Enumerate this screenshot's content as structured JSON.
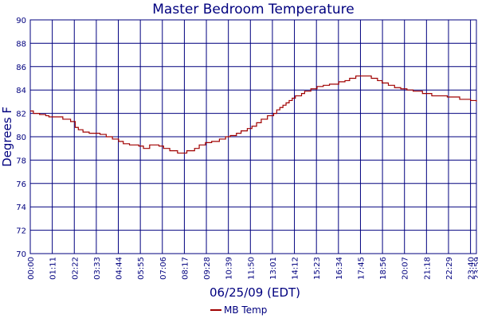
{
  "chart_data": {
    "type": "line",
    "title": "Master Bedroom Temperature",
    "xlabel": "06/25/09 (EDT)",
    "ylabel": "Degrees F",
    "ylim": [
      70,
      90
    ],
    "yticks": [
      70,
      72,
      74,
      76,
      78,
      80,
      82,
      84,
      86,
      88,
      90
    ],
    "xticks": [
      "00:00",
      "01:11",
      "02:22",
      "03:33",
      "04:44",
      "05:55",
      "07:06",
      "08:17",
      "09:28",
      "10:39",
      "11:50",
      "13:01",
      "14:12",
      "15:23",
      "16:34",
      "17:45",
      "18:56",
      "20:07",
      "21:18",
      "22:29",
      "23:40",
      "23:59"
    ],
    "xlim": [
      "00:00",
      "23:59"
    ],
    "grid": true,
    "legend_position": "bottom-center",
    "colors": {
      "series": "#a00000",
      "grid": "#00007f",
      "text": "#00007f"
    },
    "series": [
      {
        "name": "MB Temp",
        "step": true,
        "points": [
          [
            "00:00",
            82.2
          ],
          [
            "00:10",
            82.0
          ],
          [
            "00:30",
            81.9
          ],
          [
            "00:50",
            81.8
          ],
          [
            "01:00",
            81.7
          ],
          [
            "01:45",
            81.5
          ],
          [
            "02:10",
            81.3
          ],
          [
            "02:25",
            80.8
          ],
          [
            "02:35",
            80.6
          ],
          [
            "02:50",
            80.4
          ],
          [
            "03:10",
            80.3
          ],
          [
            "03:45",
            80.2
          ],
          [
            "04:05",
            80.0
          ],
          [
            "04:25",
            79.8
          ],
          [
            "04:45",
            79.6
          ],
          [
            "05:00",
            79.4
          ],
          [
            "05:20",
            79.3
          ],
          [
            "05:50",
            79.2
          ],
          [
            "06:05",
            79.0
          ],
          [
            "06:25",
            79.3
          ],
          [
            "06:55",
            79.2
          ],
          [
            "07:10",
            79.0
          ],
          [
            "07:30",
            78.8
          ],
          [
            "07:55",
            78.6
          ],
          [
            "08:25",
            78.8
          ],
          [
            "08:50",
            79.0
          ],
          [
            "09:05",
            79.3
          ],
          [
            "09:25",
            79.5
          ],
          [
            "09:45",
            79.6
          ],
          [
            "10:10",
            79.8
          ],
          [
            "10:30",
            80.0
          ],
          [
            "10:45",
            80.1
          ],
          [
            "11:05",
            80.3
          ],
          [
            "11:20",
            80.5
          ],
          [
            "11:40",
            80.7
          ],
          [
            "11:55",
            80.9
          ],
          [
            "12:10",
            81.2
          ],
          [
            "12:25",
            81.5
          ],
          [
            "12:45",
            81.8
          ],
          [
            "13:05",
            82.0
          ],
          [
            "13:15",
            82.3
          ],
          [
            "13:25",
            82.5
          ],
          [
            "13:35",
            82.7
          ],
          [
            "13:45",
            82.9
          ],
          [
            "13:55",
            83.1
          ],
          [
            "14:05",
            83.3
          ],
          [
            "14:15",
            83.5
          ],
          [
            "14:35",
            83.7
          ],
          [
            "14:45",
            83.9
          ],
          [
            "15:05",
            84.1
          ],
          [
            "15:25",
            84.3
          ],
          [
            "15:45",
            84.4
          ],
          [
            "16:05",
            84.5
          ],
          [
            "16:35",
            84.7
          ],
          [
            "16:55",
            84.8
          ],
          [
            "17:10",
            85.0
          ],
          [
            "17:30",
            85.2
          ],
          [
            "18:20",
            85.0
          ],
          [
            "18:40",
            84.8
          ],
          [
            "18:55",
            84.6
          ],
          [
            "19:15",
            84.4
          ],
          [
            "19:35",
            84.2
          ],
          [
            "19:55",
            84.1
          ],
          [
            "20:15",
            84.0
          ],
          [
            "20:35",
            83.9
          ],
          [
            "21:05",
            83.7
          ],
          [
            "21:35",
            83.5
          ],
          [
            "22:25",
            83.4
          ],
          [
            "23:05",
            83.2
          ],
          [
            "23:40",
            83.1
          ],
          [
            "23:59",
            83.0
          ]
        ]
      }
    ]
  }
}
